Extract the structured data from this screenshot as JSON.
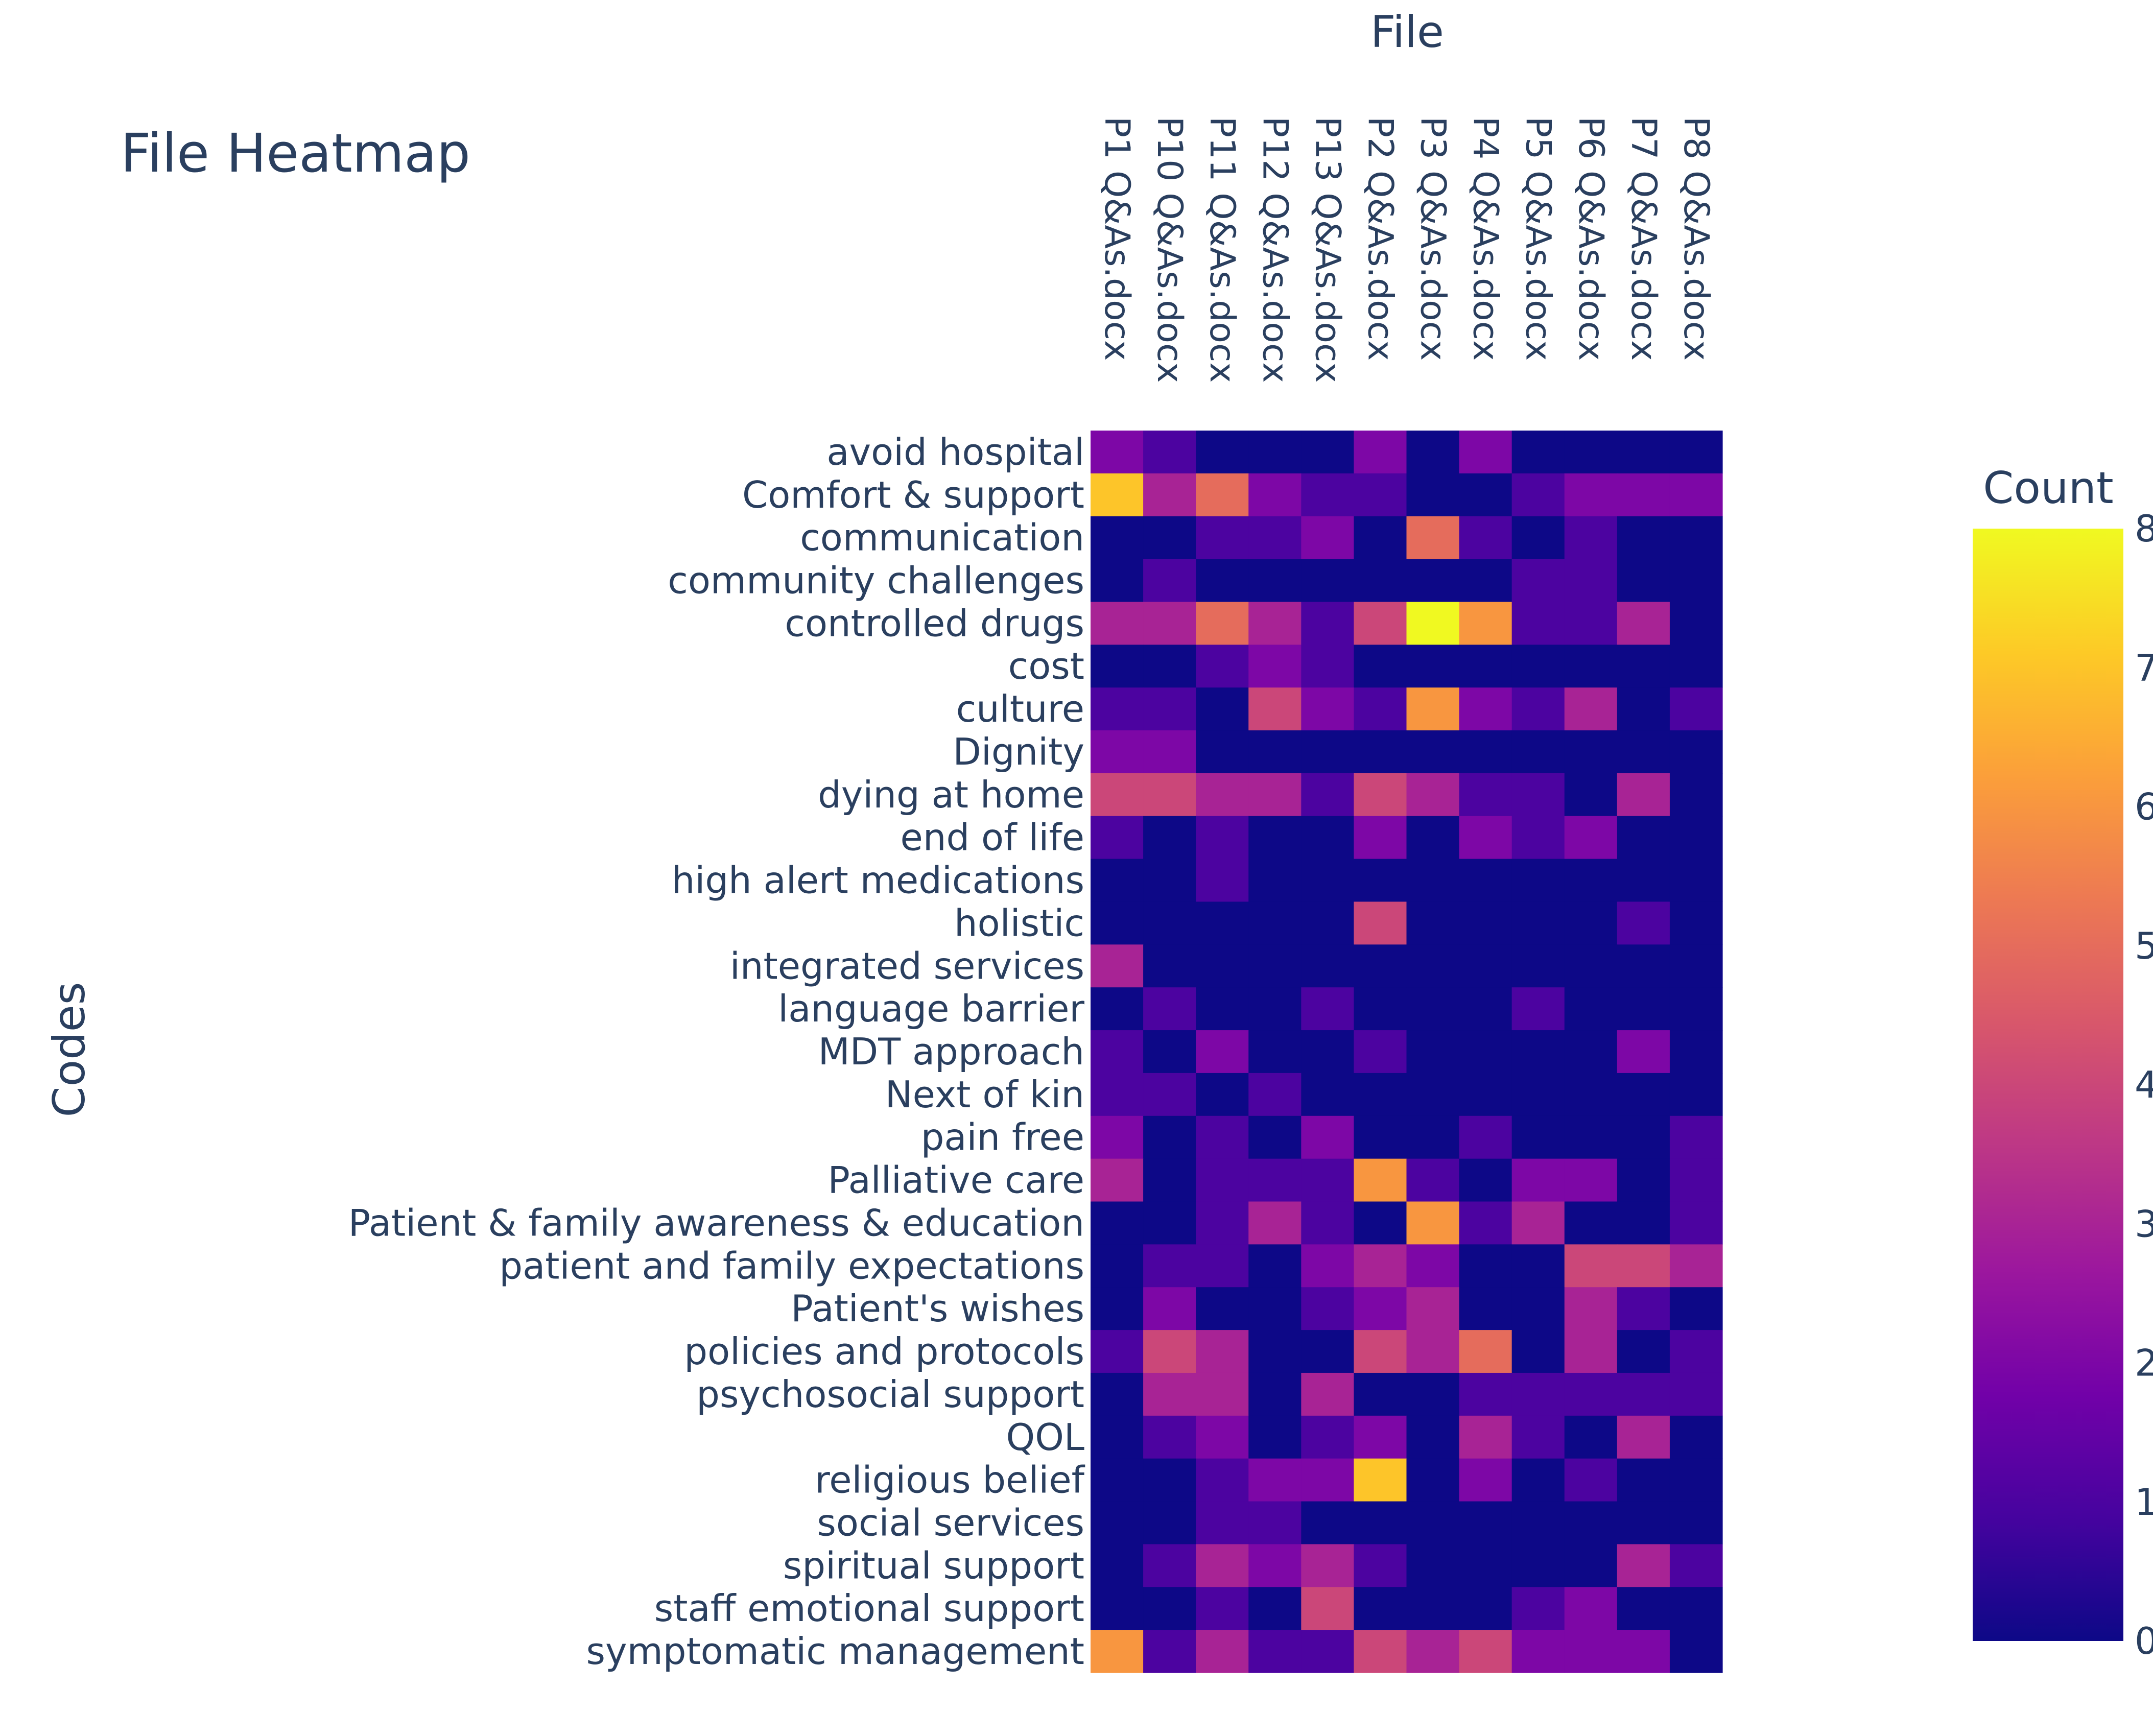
{
  "chart_data": {
    "type": "heatmap",
    "title": "File Heatmap",
    "xlabel": "File",
    "ylabel": "Codes",
    "colorbar_title": "Count",
    "zlim": [
      0,
      8
    ],
    "colorbar_ticks": [
      "0",
      "1",
      "2",
      "3",
      "4",
      "5",
      "6",
      "7",
      "8"
    ],
    "colorscale": [
      "#0d0887",
      "#46039f",
      "#7201a8",
      "#9c179e",
      "#bd3786",
      "#d8576b",
      "#ed7953",
      "#fb9f3a",
      "#fdca26",
      "#f0f921"
    ],
    "x": [
      "P1 Q&As.docx",
      "P10 Q&As.docx",
      "P11 Q&As.docx",
      "P12 Q&As.docx",
      "P13 Q&As.docx",
      "P2 Q&As.docx",
      "P3 Q&As.docx",
      "P4 Q&As.docx",
      "P5 Q&As.docx",
      "P6 Q&As.docx",
      "P7 Q&As.docx",
      "P8 Q&As.docx"
    ],
    "y": [
      "avoid hospital",
      "Comfort & support",
      "communication",
      "community challenges",
      "controlled drugs",
      "cost",
      "culture",
      "Dignity",
      "dying at home",
      "end of life",
      "high alert medications",
      "holistic",
      "integrated services",
      "language barrier",
      "MDT approach",
      "Next of kin",
      "pain free",
      "Palliative care",
      "Patient & family awareness & education",
      "patient and family expectations",
      "Patient's wishes",
      "policies and protocols",
      "psychosocial support",
      "QOL",
      "religious belief",
      "social services",
      "spiritual support",
      "staff emotional support",
      "symptomatic management"
    ],
    "z": [
      [
        2,
        1,
        0,
        0,
        0,
        2,
        0,
        2,
        0,
        0,
        0,
        0
      ],
      [
        7,
        3,
        5,
        2,
        1,
        1,
        0,
        0,
        1,
        2,
        2,
        2
      ],
      [
        0,
        0,
        1,
        1,
        2,
        0,
        5,
        1,
        0,
        1,
        0,
        0
      ],
      [
        0,
        1,
        0,
        0,
        0,
        0,
        0,
        0,
        1,
        1,
        0,
        0
      ],
      [
        3,
        3,
        5,
        3,
        1,
        4,
        8,
        6,
        1,
        1,
        3,
        0
      ],
      [
        0,
        0,
        1,
        2,
        1,
        0,
        0,
        0,
        0,
        0,
        0,
        0
      ],
      [
        1,
        1,
        0,
        4,
        2,
        1,
        6,
        2,
        1,
        3,
        0,
        1
      ],
      [
        2,
        2,
        0,
        0,
        0,
        0,
        0,
        0,
        0,
        0,
        0,
        0
      ],
      [
        4,
        4,
        3,
        3,
        1,
        4,
        3,
        1,
        1,
        0,
        3,
        0
      ],
      [
        1,
        0,
        1,
        0,
        0,
        2,
        0,
        2,
        1,
        2,
        0,
        0
      ],
      [
        0,
        0,
        1,
        0,
        0,
        0,
        0,
        0,
        0,
        0,
        0,
        0
      ],
      [
        0,
        0,
        0,
        0,
        0,
        4,
        0,
        0,
        0,
        0,
        1,
        0
      ],
      [
        3,
        0,
        0,
        0,
        0,
        0,
        0,
        0,
        0,
        0,
        0,
        0
      ],
      [
        0,
        1,
        0,
        0,
        1,
        0,
        0,
        0,
        1,
        0,
        0,
        0
      ],
      [
        1,
        0,
        2,
        0,
        0,
        1,
        0,
        0,
        0,
        0,
        2,
        0
      ],
      [
        1,
        1,
        0,
        1,
        0,
        0,
        0,
        0,
        0,
        0,
        0,
        0
      ],
      [
        2,
        0,
        1,
        0,
        2,
        0,
        0,
        1,
        0,
        0,
        0,
        1
      ],
      [
        3,
        0,
        1,
        1,
        1,
        6,
        1,
        0,
        2,
        2,
        0,
        1
      ],
      [
        0,
        0,
        1,
        3,
        1,
        0,
        6,
        1,
        3,
        0,
        0,
        1
      ],
      [
        0,
        1,
        1,
        0,
        2,
        3,
        2,
        0,
        0,
        4,
        4,
        3
      ],
      [
        0,
        2,
        0,
        0,
        1,
        2,
        3,
        0,
        0,
        3,
        1,
        0
      ],
      [
        1,
        4,
        3,
        0,
        0,
        4,
        3,
        5,
        0,
        3,
        0,
        1
      ],
      [
        0,
        3,
        3,
        0,
        3,
        0,
        0,
        1,
        1,
        1,
        1,
        1
      ],
      [
        0,
        1,
        2,
        0,
        1,
        2,
        0,
        3,
        1,
        0,
        3,
        0
      ],
      [
        0,
        0,
        1,
        2,
        2,
        7,
        0,
        2,
        0,
        1,
        0,
        0
      ],
      [
        0,
        0,
        1,
        1,
        0,
        0,
        0,
        0,
        0,
        0,
        0,
        0
      ],
      [
        0,
        1,
        3,
        2,
        3,
        1,
        0,
        0,
        0,
        0,
        3,
        1
      ],
      [
        0,
        0,
        1,
        0,
        4,
        0,
        0,
        0,
        1,
        2,
        0,
        0
      ],
      [
        6,
        1,
        3,
        1,
        1,
        4,
        3,
        4,
        2,
        2,
        2,
        0
      ]
    ]
  }
}
